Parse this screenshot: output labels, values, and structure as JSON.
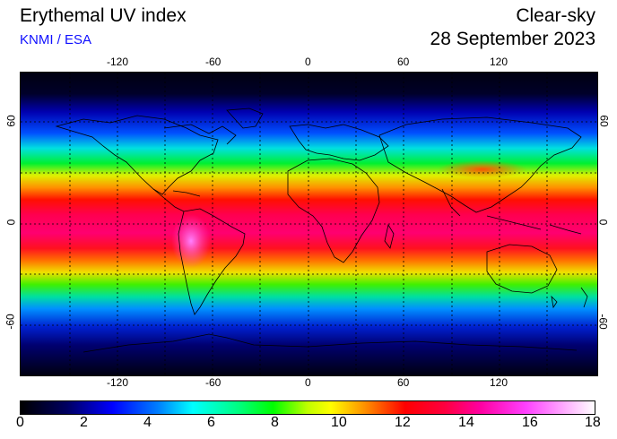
{
  "header": {
    "title": "Erythemal UV index",
    "credit": "KNMI / ESA",
    "mode": "Clear-sky",
    "date": "28 September 2023"
  },
  "map": {
    "lon_ticks": [
      "-120",
      "-60",
      "0",
      "60",
      "120"
    ],
    "lat_ticks": [
      "60",
      "0",
      "-60"
    ],
    "colors": {
      "frame": "#000000",
      "grid": "#000000",
      "coast": "#000000"
    }
  },
  "colorbar": {
    "labels": [
      "0",
      "2",
      "4",
      "6",
      "8",
      "10",
      "12",
      "14",
      "16",
      "18"
    ],
    "min": 0,
    "max": 18
  }
}
